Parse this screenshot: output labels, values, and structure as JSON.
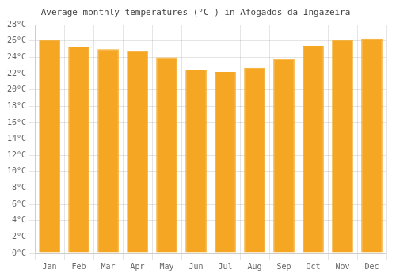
{
  "chart_data": {
    "type": "bar",
    "title": "Average monthly temperatures (°C ) in Afogados da Ingazeira",
    "categories": [
      "Jan",
      "Feb",
      "Mar",
      "Apr",
      "May",
      "Jun",
      "Jul",
      "Aug",
      "Sep",
      "Oct",
      "Nov",
      "Dec"
    ],
    "values": [
      26.1,
      25.2,
      25.0,
      24.8,
      24.0,
      22.5,
      22.2,
      22.7,
      23.8,
      25.4,
      26.1,
      26.3
    ],
    "color": "#F5A623",
    "ylim": [
      0,
      28
    ],
    "yticks": [
      {
        "value": 0,
        "label": "0°C"
      },
      {
        "value": 2,
        "label": "2°C"
      },
      {
        "value": 4,
        "label": "4°C"
      },
      {
        "value": 6,
        "label": "6°C"
      },
      {
        "value": 8,
        "label": "8°C"
      },
      {
        "value": 10,
        "label": "10°C"
      },
      {
        "value": 12,
        "label": "12°C"
      },
      {
        "value": 14,
        "label": "14°C"
      },
      {
        "value": 16,
        "label": "16°C"
      },
      {
        "value": 18,
        "label": "18°C"
      },
      {
        "value": 20,
        "label": "20°C"
      },
      {
        "value": 22,
        "label": "22°C"
      },
      {
        "value": 24,
        "label": "24°C"
      },
      {
        "value": 26,
        "label": "26°C"
      },
      {
        "value": 28,
        "label": "28°C"
      }
    ],
    "grid": true
  }
}
